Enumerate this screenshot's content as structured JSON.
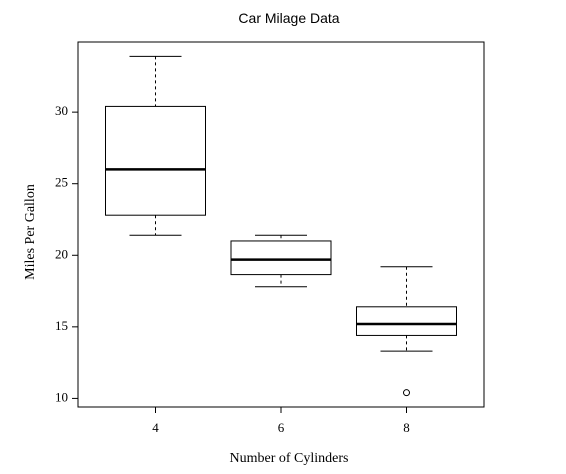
{
  "chart_data": {
    "type": "box",
    "title": "Car Milage Data",
    "xlabel": "Number of Cylinders",
    "ylabel": "Miles Per Gallon",
    "categories": [
      "4",
      "6",
      "8"
    ],
    "boxes": [
      {
        "category": "4",
        "whisker_low": 21.4,
        "q1": 22.8,
        "median": 26.0,
        "q3": 30.4,
        "whisker_high": 33.9,
        "outliers": []
      },
      {
        "category": "6",
        "whisker_low": 17.8,
        "q1": 18.65,
        "median": 19.7,
        "q3": 21.0,
        "whisker_high": 21.4,
        "outliers": []
      },
      {
        "category": "8",
        "whisker_low": 13.3,
        "q1": 14.4,
        "median": 15.2,
        "q3": 16.4,
        "whisker_high": 19.2,
        "outliers": [
          10.4
        ]
      }
    ],
    "yticks": [
      10,
      15,
      20,
      25,
      30
    ],
    "ylim": [
      9.4,
      34.9
    ],
    "grid": false,
    "legend": "none"
  }
}
